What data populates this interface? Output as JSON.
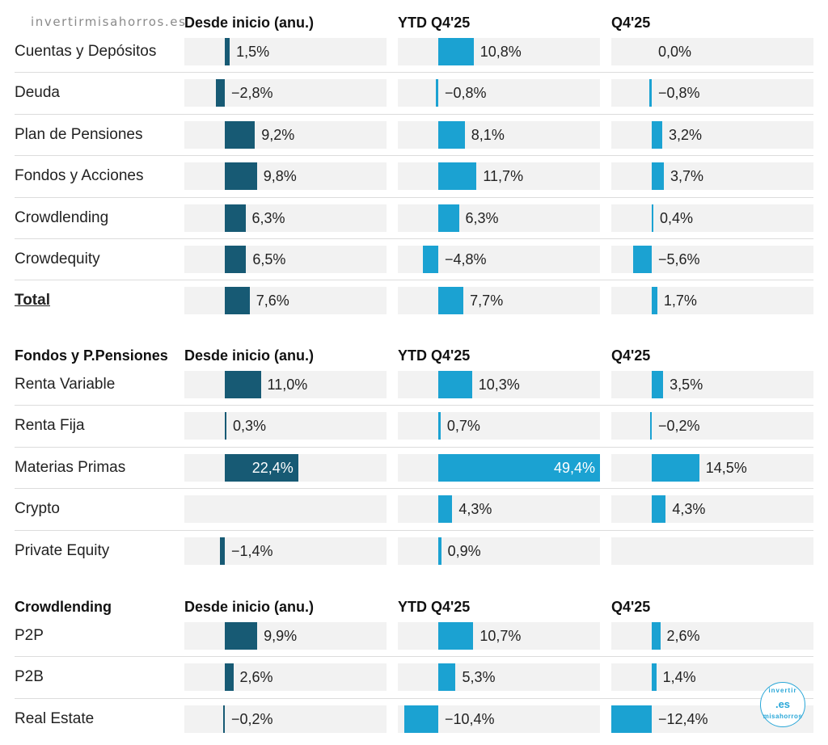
{
  "watermark": "invertirmisahorros.es",
  "logo": {
    "top": "invertir",
    "mid": ".es",
    "bottom": "misahorros"
  },
  "colors": {
    "col1": "#175a74",
    "col2": "#1ba2d2",
    "col3": "#1ba2d2",
    "cell_bg": "#f2f2f2"
  },
  "chart_data": [
    {
      "type": "bar",
      "section_title": "",
      "columns": [
        "Desde inicio (anu.)",
        "YTD Q4'25",
        "Q4'25"
      ],
      "categories": [
        "Cuentas y Depósitos",
        "Deuda",
        "Plan de Pensiones",
        "Fondos y Acciones",
        "Crowdlending",
        "Crowdequity",
        "Total"
      ],
      "series": [
        {
          "name": "Desde inicio (anu.)",
          "values": [
            1.5,
            -2.8,
            9.2,
            9.8,
            6.3,
            6.5,
            7.6
          ]
        },
        {
          "name": "YTD Q4'25",
          "values": [
            10.8,
            -0.8,
            8.1,
            11.7,
            6.3,
            -4.8,
            7.7
          ]
        },
        {
          "name": "Q4'25",
          "values": [
            0.0,
            -0.8,
            3.2,
            3.7,
            0.4,
            -5.6,
            1.7
          ]
        }
      ]
    },
    {
      "type": "bar",
      "section_title": "Fondos y P.Pensiones",
      "columns": [
        "Desde inicio (anu.)",
        "YTD Q4'25",
        "Q4'25"
      ],
      "categories": [
        "Renta Variable",
        "Renta Fija",
        "Materias Primas",
        "Crypto",
        "Private Equity"
      ],
      "series": [
        {
          "name": "Desde inicio (anu.)",
          "values": [
            11.0,
            0.3,
            22.4,
            null,
            -1.4
          ]
        },
        {
          "name": "YTD Q4'25",
          "values": [
            10.3,
            0.7,
            49.4,
            4.3,
            0.9
          ]
        },
        {
          "name": "Q4'25",
          "values": [
            3.5,
            -0.2,
            14.5,
            4.3,
            null
          ]
        }
      ]
    },
    {
      "type": "bar",
      "section_title": "Crowdlending",
      "columns": [
        "Desde inicio (anu.)",
        "YTD Q4'25",
        "Q4'25"
      ],
      "categories": [
        "P2P",
        "P2B",
        "Real Estate"
      ],
      "series": [
        {
          "name": "Desde inicio (anu.)",
          "values": [
            9.9,
            2.6,
            -0.2
          ]
        },
        {
          "name": "YTD Q4'25",
          "values": [
            10.7,
            5.3,
            -10.4
          ]
        },
        {
          "name": "Q4'25",
          "values": [
            2.6,
            1.4,
            -12.4
          ]
        }
      ]
    }
  ]
}
